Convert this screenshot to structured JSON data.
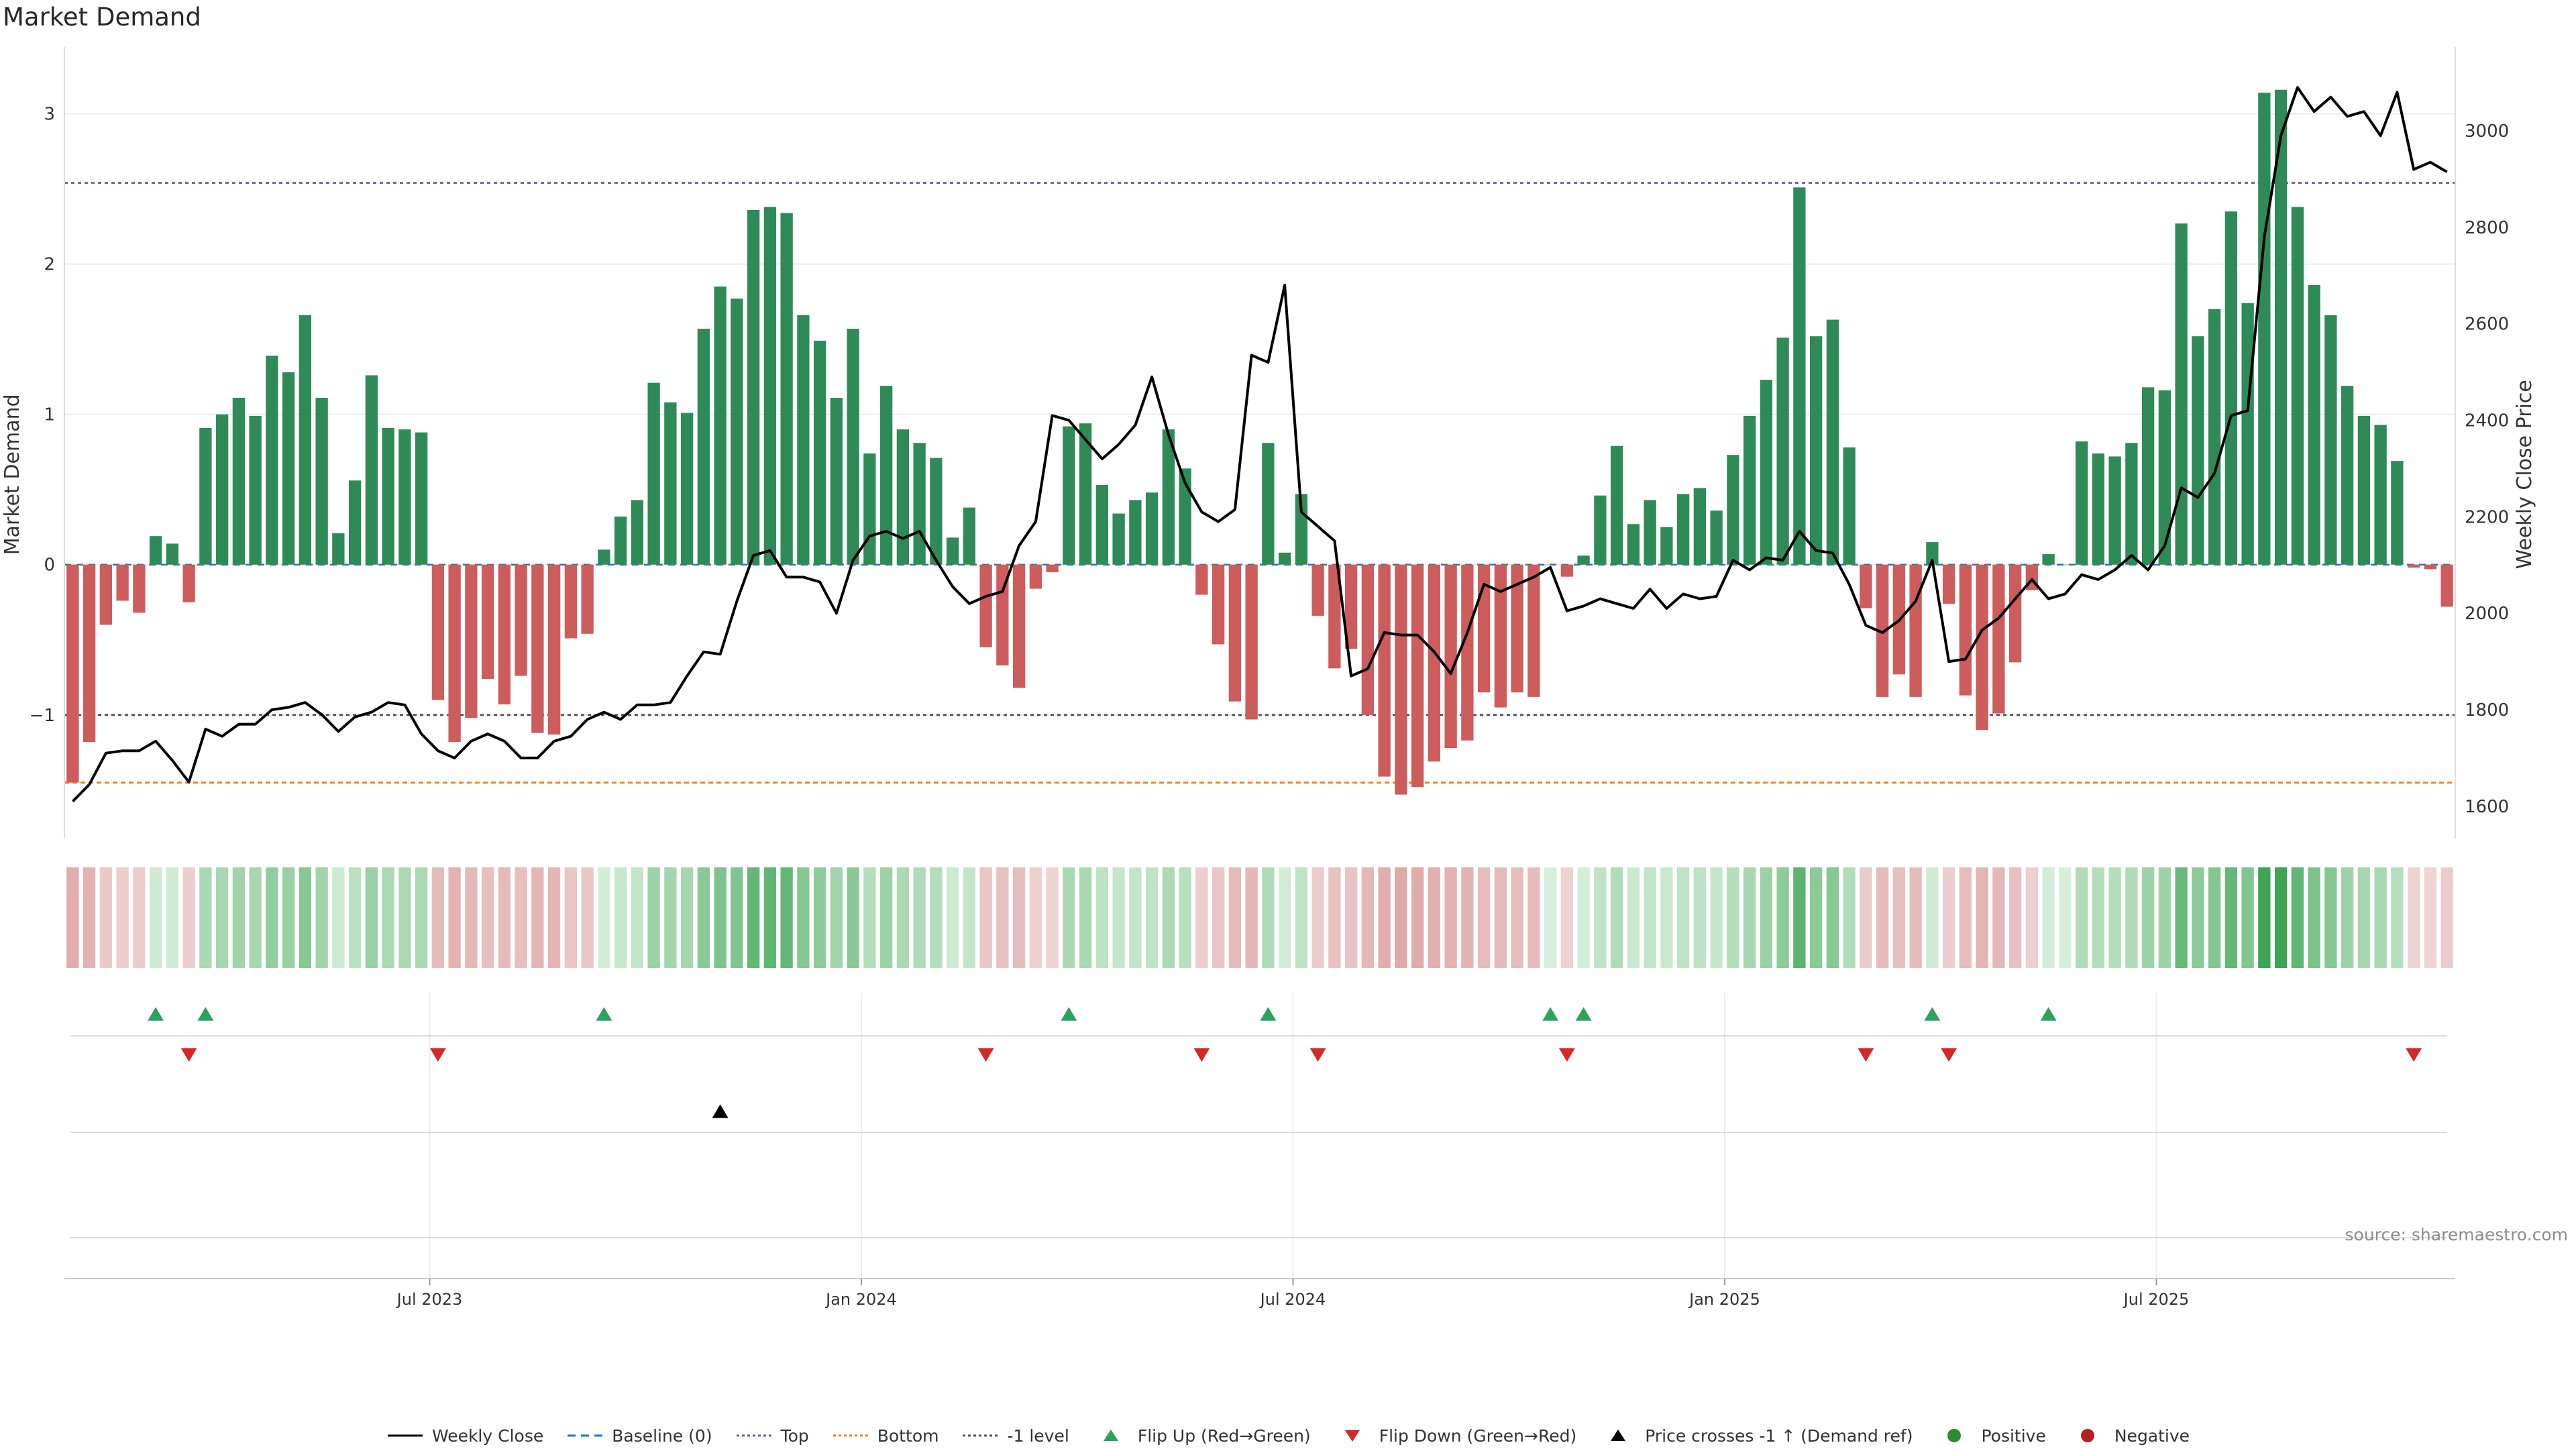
{
  "page": {
    "title": "Market Demand",
    "source": "source: sharemaestro.com"
  },
  "legend": [
    {
      "label": "Weekly Close",
      "marker": "solid-line",
      "color": "#000000"
    },
    {
      "label": "Baseline (0)",
      "marker": "dashed-line",
      "color": "#1f77b4"
    },
    {
      "label": "Top",
      "marker": "dotted-line",
      "color": "#6a5acd"
    },
    {
      "label": "Bottom",
      "marker": "dotted-line",
      "color": "#ff7f0e"
    },
    {
      "label": "-1 level",
      "marker": "dotted-line",
      "color": "#555555"
    },
    {
      "label": "Flip Up (Red→Green)",
      "marker": "triangle-up",
      "color": "#2ca25f"
    },
    {
      "label": "Flip Down (Green→Red)",
      "marker": "triangle-down",
      "color": "#d62728"
    },
    {
      "label": "Price crosses -1 ↑ (Demand ref)",
      "marker": "triangle-up",
      "color": "#000000"
    },
    {
      "label": "Positive",
      "marker": "circle",
      "color": "#2e8b2e"
    },
    {
      "label": "Negative",
      "marker": "circle",
      "color": "#b22222"
    }
  ],
  "chart_data": {
    "type": "bar",
    "ylabel": "Market Demand",
    "y2label": "Weekly Close Price",
    "ylim": [
      -1.8,
      3.4
    ],
    "y_ticks": [
      -1,
      0,
      1,
      2,
      3
    ],
    "y_tick_labels": [
      "−1",
      "0",
      "1",
      "2",
      "3"
    ],
    "y2lim": [
      1540,
      3160
    ],
    "y2_ticks": [
      1600,
      1800,
      2000,
      2200,
      2400,
      2600,
      2800,
      3000
    ],
    "x_tick_labels": [
      "Jul 2023",
      "Jan 2024",
      "Jul 2024",
      "Jan 2025",
      "Jul 2025"
    ],
    "x_tick_weeks": [
      22,
      48,
      74,
      100,
      126
    ],
    "reference_lines": {
      "top": 2.54,
      "bottom": -1.45,
      "minus_one": -1.0,
      "baseline": 0
    },
    "colors": {
      "positive_bar": "#2e8b57",
      "negative_bar": "#cd5c5c",
      "price": "#000000",
      "flip_up": "#2ca25f",
      "flip_down": "#d62728",
      "cross": "#000000",
      "top": "#6a5acd",
      "bottom": "#ff7f0e",
      "minus_one": "#555555",
      "baseline": "#1f77b4"
    },
    "series": [
      {
        "name": "Market Demand",
        "values": [
          -1.45,
          -1.18,
          -0.4,
          -0.24,
          -0.32,
          0.19,
          0.14,
          -0.25,
          0.91,
          1.0,
          1.11,
          0.99,
          1.39,
          1.28,
          1.66,
          1.11,
          0.21,
          0.56,
          1.26,
          0.91,
          0.9,
          0.88,
          -0.9,
          -1.18,
          -1.02,
          -0.76,
          -0.93,
          -0.74,
          -1.12,
          -1.13,
          -0.49,
          -0.46,
          0.1,
          0.32,
          0.43,
          1.21,
          1.08,
          1.01,
          1.57,
          1.85,
          1.77,
          2.36,
          2.38,
          2.34,
          1.66,
          1.49,
          1.11,
          1.57,
          0.74,
          1.19,
          0.9,
          0.81,
          0.71,
          0.18,
          0.38,
          -0.55,
          -0.67,
          -0.82,
          -0.16,
          -0.05,
          0.92,
          0.94,
          0.53,
          0.34,
          0.43,
          0.48,
          0.9,
          0.64,
          -0.2,
          -0.53,
          -0.91,
          -1.03,
          0.81,
          0.08,
          0.47,
          -0.34,
          -0.69,
          -0.56,
          -1.0,
          -1.41,
          -1.53,
          -1.48,
          -1.31,
          -1.22,
          -1.17,
          -0.85,
          -0.95,
          -0.85,
          -0.88,
          0,
          -0.08,
          0.06,
          0.46,
          0.79,
          0.27,
          0.43,
          0.25,
          0.47,
          0.51,
          0.36,
          0.73,
          0.99,
          1.23,
          1.51,
          2.51,
          1.52,
          1.63,
          0.78,
          -0.29,
          -0.88,
          -0.73,
          -0.88,
          0.15,
          -0.26,
          -0.87,
          -1.1,
          -0.99,
          -0.65,
          -0.17,
          0.07,
          0,
          0.82,
          0.74,
          0.72,
          0.81,
          1.18,
          1.16,
          2.27,
          1.52,
          1.7,
          2.35,
          1.74,
          3.14,
          3.16,
          2.38,
          1.86,
          1.66,
          1.19,
          0.99,
          0.93,
          0.69,
          -0.02,
          -0.03,
          -0.28
        ]
      },
      {
        "name": "Weekly Close",
        "values": [
          1610,
          1645,
          1710,
          1715,
          1715,
          1735,
          1695,
          1650,
          1760,
          1745,
          1770,
          1770,
          1800,
          1805,
          1815,
          1790,
          1755,
          1785,
          1795,
          1815,
          1810,
          1750,
          1715,
          1700,
          1735,
          1750,
          1735,
          1700,
          1700,
          1735,
          1745,
          1780,
          1795,
          1780,
          1810,
          1810,
          1815,
          1870,
          1920,
          1915,
          2025,
          2120,
          2130,
          2075,
          2075,
          2065,
          2000,
          2110,
          2160,
          2170,
          2155,
          2170,
          2110,
          2055,
          2020,
          2035,
          2045,
          2140,
          2190,
          2410,
          2400,
          2360,
          2320,
          2350,
          2390,
          2490,
          2370,
          2270,
          2210,
          2190,
          2215,
          2535,
          2520,
          2680,
          2210,
          2180,
          2150,
          1870,
          1885,
          1960,
          1955,
          1955,
          1920,
          1875,
          1960,
          2060,
          2045,
          2060,
          2075,
          2095,
          2005,
          2015,
          2030,
          2020,
          2010,
          2050,
          2010,
          2040,
          2030,
          2035,
          2110,
          2090,
          2115,
          2110,
          2170,
          2130,
          2125,
          2060,
          1975,
          1960,
          1985,
          2025,
          2110,
          1900,
          1905,
          1965,
          1990,
          2030,
          2070,
          2030,
          2040,
          2080,
          2070,
          2090,
          2120,
          2090,
          2140,
          2260,
          2240,
          2290,
          2410,
          2420,
          2780,
          2990,
          3090,
          3040,
          3070,
          3030,
          3040,
          2990,
          3080,
          2920,
          2935,
          2915
        ]
      }
    ],
    "flip_up_weeks": [
      5,
      8,
      32,
      60,
      72,
      89,
      91,
      112,
      119
    ],
    "flip_down_weeks": [
      7,
      22,
      55,
      68,
      75,
      90,
      108,
      113,
      141
    ],
    "price_cross_weeks": [
      39
    ]
  }
}
